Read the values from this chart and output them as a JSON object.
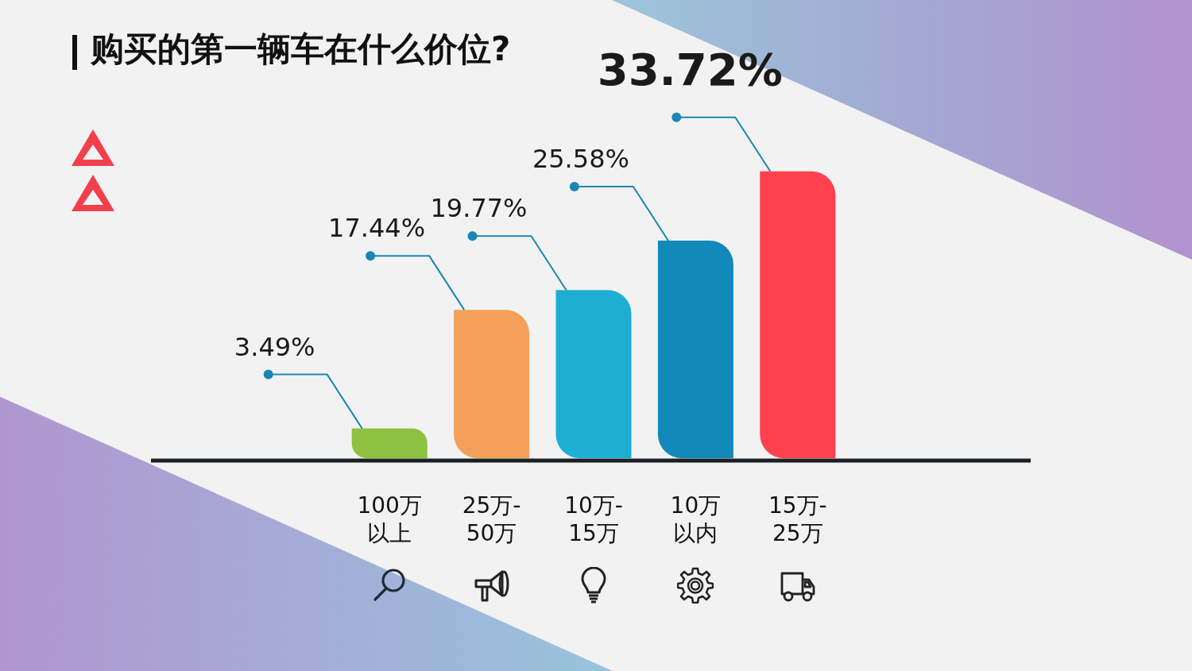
{
  "chart_data": {
    "type": "bar",
    "title": "购买的第一辆车在什么价位?",
    "categories": [
      "100万以上",
      "25万-\n50万",
      "10万-\n15万",
      "10万以内",
      "15万-\n25万"
    ],
    "values": [
      3.49,
      17.44,
      19.77,
      25.58,
      33.72
    ],
    "colors": [
      "#8dc13f",
      "#f4a05a",
      "#1eaed4",
      "#1289b8",
      "#ff414e"
    ],
    "value_labels": [
      "3.49%",
      "17.44%",
      "19.77%",
      "25.58%",
      "33.72%"
    ],
    "grid": false,
    "legend": false
  }
}
